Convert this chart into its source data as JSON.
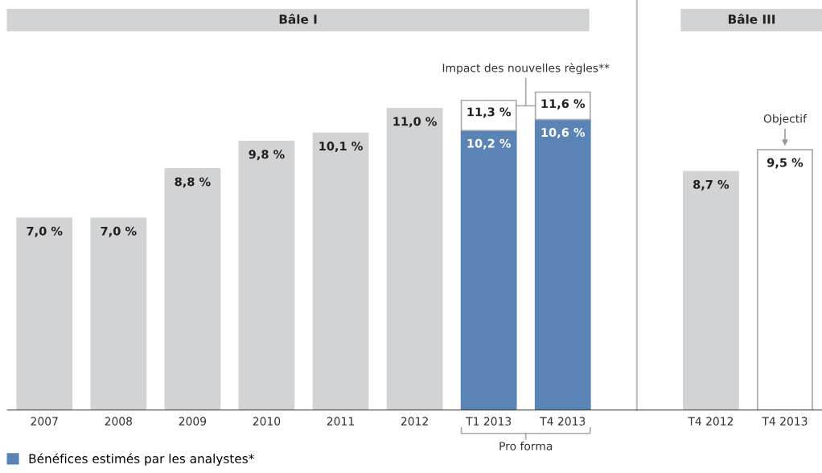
{
  "chart_data": {
    "type": "bar",
    "stacked": true,
    "categories": [
      "2007",
      "2008",
      "2009",
      "2010",
      "2011",
      "2012",
      "T1 2013",
      "T4 2013",
      null,
      "T4 2012",
      "T4 2013"
    ],
    "series": [
      {
        "color": "#d1d3d4",
        "values": [
          7.0,
          7.0,
          8.8,
          9.8,
          10.1,
          11.0,
          null,
          null,
          null,
          8.7,
          null
        ],
        "value_labels": [
          "7,0 %",
          "7,0 %",
          "8,8 %",
          "9,8 %",
          "10,1 %",
          "11,0 %",
          null,
          null,
          null,
          "8,7 %",
          null
        ]
      },
      {
        "name": "Bénéfices estimés par les analystes*",
        "color": "#5a84b5",
        "values": [
          null,
          null,
          null,
          null,
          null,
          null,
          10.2,
          10.6,
          null,
          null,
          null
        ],
        "value_labels": [
          null,
          null,
          null,
          null,
          null,
          null,
          "10,2 %",
          "10,6 %",
          null,
          null,
          null
        ]
      },
      {
        "color": "#ffffff",
        "values": [
          null,
          null,
          null,
          null,
          null,
          null,
          1.1,
          1.0,
          null,
          null,
          null
        ]
      },
      {
        "color": "#ffffff",
        "values": [
          null,
          null,
          null,
          null,
          null,
          null,
          null,
          null,
          null,
          null,
          9.5
        ],
        "value_labels": [
          null,
          null,
          null,
          null,
          null,
          null,
          null,
          null,
          null,
          null,
          "9,5 %"
        ]
      }
    ],
    "totals": [
      null,
      null,
      null,
      null,
      null,
      null,
      "11,3 %",
      "11,6 %",
      null,
      null,
      null
    ],
    "legend": "bottom left",
    "annotations": [
      "Bâle I",
      "Bâle III",
      "Impact des nouvelles règles**",
      "Objectif",
      "Pro forma"
    ]
  }
}
